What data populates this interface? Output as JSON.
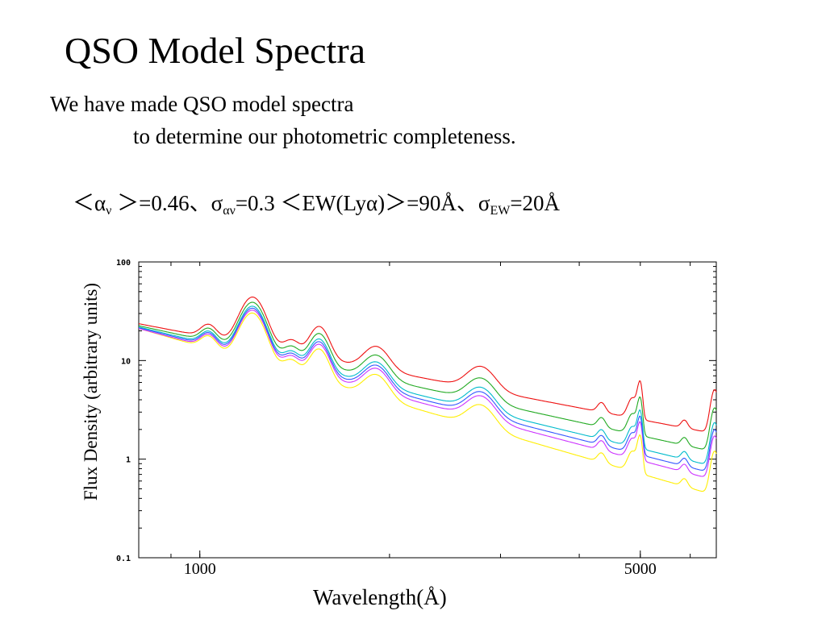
{
  "slide": {
    "title": "QSO Model Spectra",
    "line1": "We have made  QSO model spectra",
    "line2": "to determine our photometric completeness.",
    "params": {
      "alpha_open": "＜α",
      "alpha_sub": "ν",
      "alpha_close": " ＞=0.46、σ",
      "sigma_sub": "αν",
      "ew_text": "=0.3 ＜EW(Lyα)＞=90Å、σ",
      "ew_sub": "EW",
      "ew_end": "=20Å"
    }
  },
  "chart_data": {
    "type": "line",
    "title": "",
    "xlabel": "Wavelength(Å)",
    "ylabel": "Flux Density (arbitrary units)",
    "xscale": "log",
    "yscale": "log",
    "xlim": [
      800,
      6600
    ],
    "ylim": [
      0.1,
      100
    ],
    "x_ticks": [
      {
        "value": 1000,
        "label": "1000"
      },
      {
        "value": 5000,
        "label": "5000"
      }
    ],
    "y_ticks": [
      {
        "value": 100,
        "label": "100"
      },
      {
        "value": 10,
        "label": "10"
      },
      {
        "value": 1,
        "label": "1"
      },
      {
        "value": 0.1,
        "label": "0.1"
      }
    ],
    "emission_lines": [
      {
        "x": 1216,
        "amp": 2.1,
        "width": 0.018
      },
      {
        "x": 1034,
        "amp": 0.35,
        "width": 0.012
      },
      {
        "x": 1400,
        "amp": 0.35,
        "width": 0.012
      },
      {
        "x": 1549,
        "amp": 1.1,
        "width": 0.014
      },
      {
        "x": 1909,
        "amp": 0.7,
        "width": 0.018
      },
      {
        "x": 2798,
        "amp": 0.7,
        "width": 0.02
      },
      {
        "x": 4340,
        "amp": 0.25,
        "width": 0.006
      },
      {
        "x": 4861,
        "amp": 0.6,
        "width": 0.007
      },
      {
        "x": 4959,
        "amp": 0.5,
        "width": 0.003
      },
      {
        "x": 5007,
        "amp": 1.1,
        "width": 0.003
      },
      {
        "x": 5876,
        "amp": 0.2,
        "width": 0.005
      },
      {
        "x": 6563,
        "amp": 1.8,
        "width": 0.006
      }
    ],
    "series": [
      {
        "color": "#ffee00",
        "alpha_nu": 0.15,
        "norm_1000": 14.0
      },
      {
        "color": "#cc33ff",
        "alpha_nu": 0.32,
        "norm_1000": 14.5
      },
      {
        "color": "#3355ff",
        "alpha_nu": 0.38,
        "norm_1000": 15.0
      },
      {
        "color": "#00bbcc",
        "alpha_nu": 0.45,
        "norm_1000": 15.5
      },
      {
        "color": "#22aa22",
        "alpha_nu": 0.6,
        "norm_1000": 16.5
      },
      {
        "color": "#ee1111",
        "alpha_nu": 0.78,
        "norm_1000": 18.0
      }
    ]
  }
}
